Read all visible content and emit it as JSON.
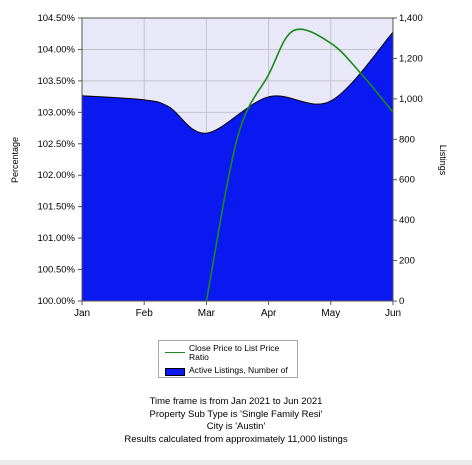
{
  "chart_data": {
    "type": "area",
    "x": [
      "Jan",
      "Feb",
      "Mar",
      "Apr",
      "May",
      "Jun"
    ],
    "left_axis": {
      "label": "Percentage",
      "ylim": [
        100.0,
        104.5
      ],
      "ticks": [
        "100.00%",
        "100.50%",
        "101.00%",
        "101.50%",
        "102.00%",
        "102.50%",
        "103.00%",
        "103.50%",
        "104.00%",
        "104.50%"
      ]
    },
    "right_axis": {
      "label": "Listings",
      "ylim": [
        0,
        1400
      ],
      "ticks": [
        "0",
        "200",
        "400",
        "600",
        "800",
        "1,000",
        "1,200",
        "1,400"
      ]
    },
    "series": [
      {
        "name": "Close Price to List Price Ratio",
        "type": "line",
        "axis": "left",
        "color": "#1a8a1a",
        "points": [
          [
            2.0,
            100.0
          ],
          [
            2.5,
            102.6
          ],
          [
            3.0,
            103.6
          ],
          [
            3.4,
            104.3
          ],
          [
            4.0,
            104.1
          ],
          [
            4.5,
            103.6
          ],
          [
            5.0,
            103.0
          ]
        ]
      },
      {
        "name": "Active Listings, Number of",
        "type": "area",
        "axis": "right",
        "color": "#0a19f0",
        "points": [
          [
            0,
            1015
          ],
          [
            1,
            995
          ],
          [
            1.4,
            960
          ],
          [
            2.0,
            830
          ],
          [
            3.0,
            1010
          ],
          [
            4.0,
            990
          ],
          [
            5.0,
            1330
          ]
        ]
      }
    ],
    "grid": true,
    "plot_background": "#e8e8f8",
    "legend_position": "bottom"
  },
  "legend": {
    "items": [
      {
        "label": "Close Price to List Price Ratio",
        "color": "#1a8a1a"
      },
      {
        "label": "Active Listings, Number of",
        "color": "#0a19f0"
      }
    ]
  },
  "footer": {
    "line1": "Time frame is from Jan 2021 to Jun 2021",
    "line2": "Property Sub Type is 'Single Family Resi'",
    "line3": "City is 'Austin'",
    "line4": "Results calculated from approximately 11,000 listings"
  }
}
